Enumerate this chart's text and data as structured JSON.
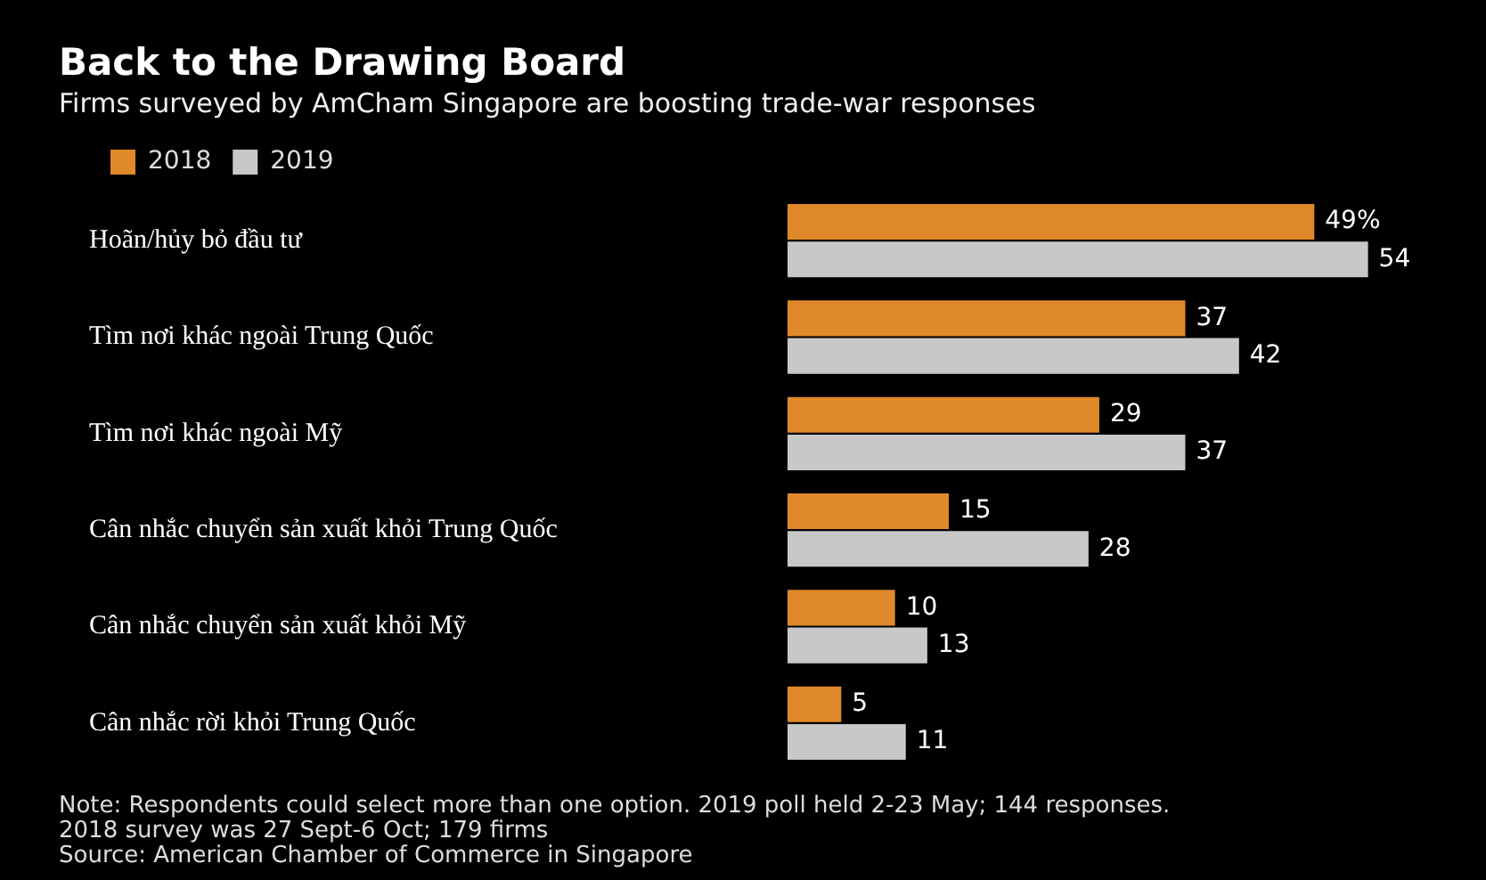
{
  "chart_data": {
    "type": "bar",
    "orientation": "horizontal",
    "title": "Back to the Drawing Board",
    "subtitle": "Firms surveyed by AmCham Singapore are boosting trade-war responses",
    "categories": [
      "Hoãn/hủy bỏ đầu tư",
      "Tìm nơi khác ngoài Trung Quốc",
      "Tìm nơi khác ngoài Mỹ",
      "Cân nhắc chuyển sản xuất khỏi Trung Quốc",
      "Cân nhắc chuyển sản xuất khỏi Mỹ",
      "Cân nhắc rời khỏi Trung Quốc"
    ],
    "series": [
      {
        "name": "2018",
        "color": "#e0892a",
        "values": [
          49,
          37,
          29,
          15,
          10,
          5
        ],
        "value_labels": [
          "49%",
          "37",
          "29",
          "15",
          "10",
          "5"
        ]
      },
      {
        "name": "2019",
        "color": "#c8c8c8",
        "values": [
          54,
          42,
          37,
          28,
          13,
          11
        ],
        "value_labels": [
          "54",
          "42",
          "37",
          "28",
          "13",
          "11"
        ]
      }
    ],
    "legend": "top left",
    "tick_labels": "y",
    "annotations": [
      "Note: Respondents could select more than one option. 2019 poll held 2-23 May; 144 responses. 2018 survey was 27 Sept-6 Oct; 179 firms",
      "Source: American Chamber of Commerce in Singapore"
    ]
  }
}
